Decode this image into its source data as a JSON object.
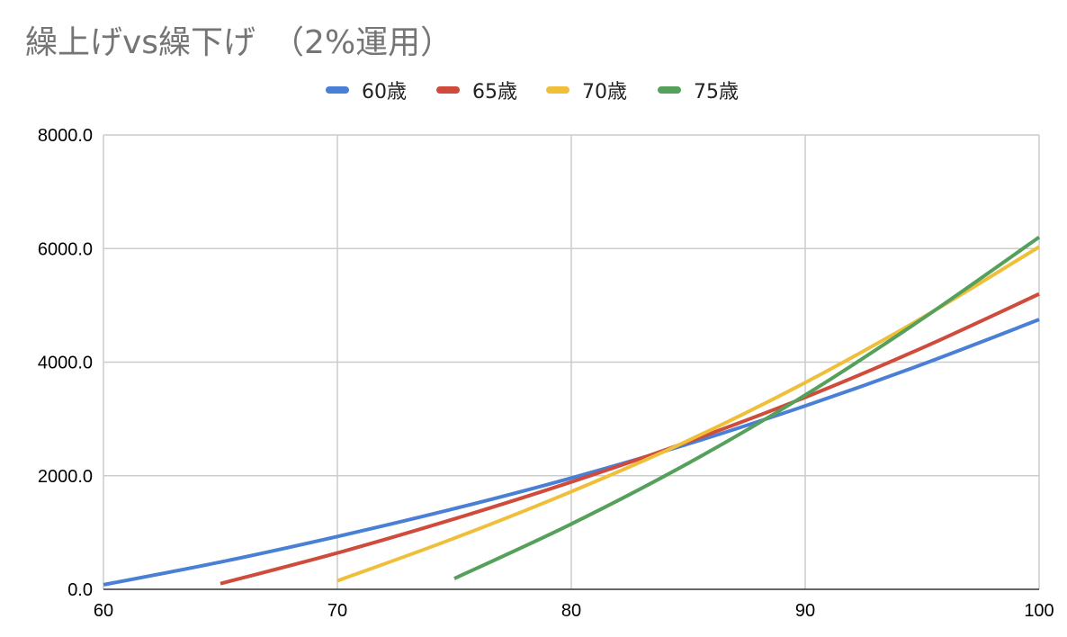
{
  "chart_data": {
    "type": "line",
    "title": "繰上げvs繰下げ　（2%運用）",
    "xlim": [
      60,
      100
    ],
    "ylim": [
      0,
      8000
    ],
    "x_ticks": [
      "60",
      "70",
      "80",
      "90",
      "100"
    ],
    "y_ticks": [
      "0.0",
      "2000.0",
      "4000.0",
      "6000.0",
      "8000.0"
    ],
    "grid": true,
    "legend_position": "top",
    "series": [
      {
        "name": "60歳",
        "color": "#4a7fd6",
        "x": [
          60,
          65,
          70,
          75,
          80,
          85,
          90,
          95,
          100
        ],
        "y": [
          80,
          480,
          930,
          1420,
          1960,
          2560,
          3230,
          3960,
          4750
        ]
      },
      {
        "name": "65歳",
        "color": "#cf4b3c",
        "x": [
          65,
          70,
          75,
          80,
          85,
          90,
          95,
          100
        ],
        "y": [
          100,
          640,
          1240,
          1890,
          2600,
          3380,
          4250,
          5200
        ]
      },
      {
        "name": "70歳",
        "color": "#f0bf3a",
        "x": [
          70,
          75,
          80,
          85,
          90,
          95,
          100
        ],
        "y": [
          150,
          900,
          1720,
          2620,
          3640,
          4780,
          6030
        ]
      },
      {
        "name": "75歳",
        "color": "#55a05a",
        "x": [
          75,
          80,
          85,
          90,
          95,
          100
        ],
        "y": [
          190,
          1150,
          2220,
          3420,
          4760,
          6200
        ]
      }
    ]
  }
}
